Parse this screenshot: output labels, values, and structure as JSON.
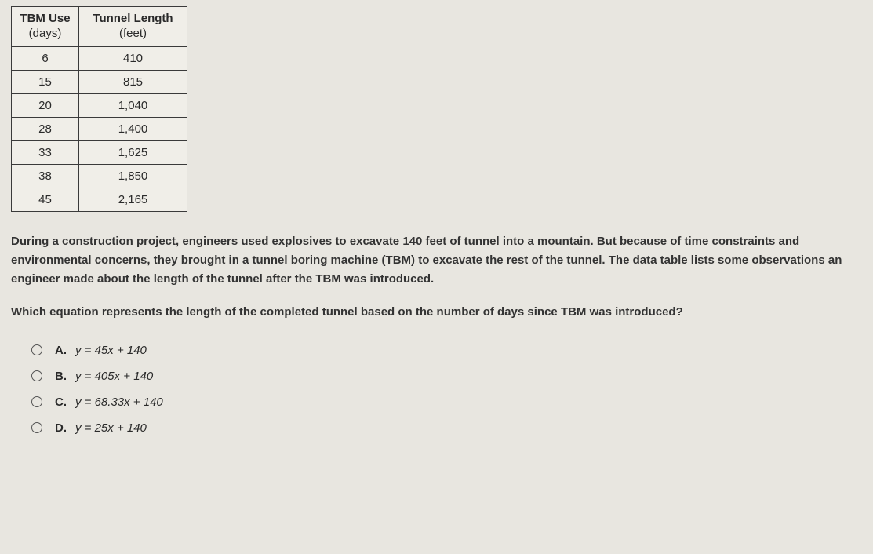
{
  "table": {
    "header1_line1": "TBM Use",
    "header1_line2": "(days)",
    "header2_line1": "Tunnel Length",
    "header2_line2": "(feet)",
    "rows": [
      {
        "c1": "6",
        "c2": "410"
      },
      {
        "c1": "15",
        "c2": "815"
      },
      {
        "c1": "20",
        "c2": "1,040"
      },
      {
        "c1": "28",
        "c2": "1,400"
      },
      {
        "c1": "33",
        "c2": "1,625"
      },
      {
        "c1": "38",
        "c2": "1,850"
      },
      {
        "c1": "45",
        "c2": "2,165"
      }
    ]
  },
  "paragraph": "During a construction project, engineers used explosives to excavate 140 feet of tunnel into a mountain. But because of time constraints and environmental concerns, they brought in a tunnel boring machine (TBM) to excavate the rest of the tunnel. The data table lists some observations an engineer made about the length of the tunnel after the TBM was introduced.",
  "question": "Which equation represents the length of the completed tunnel based on the number of days since TBM was introduced?",
  "choices": {
    "a_letter": "A.",
    "a_eq": "y = 45x + 140",
    "b_letter": "B.",
    "b_eq": "y = 405x + 140",
    "c_letter": "C.",
    "c_eq": "y = 68.33x + 140",
    "d_letter": "D.",
    "d_eq": "y = 25x + 140"
  }
}
